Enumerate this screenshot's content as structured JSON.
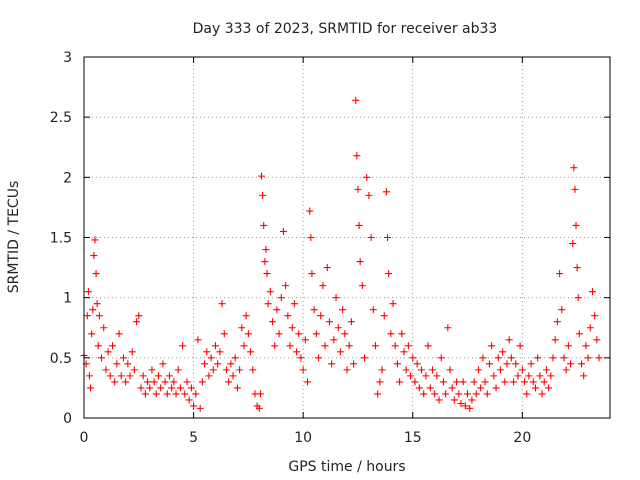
{
  "chart_data": {
    "type": "scatter",
    "title": "Day 333 of 2023, SRMTID for receiver ab33",
    "xlabel": "GPS time / hours",
    "ylabel": "SRMTID / TECUs",
    "xlim": [
      0,
      24
    ],
    "ylim": [
      0,
      3
    ],
    "xticks": [
      "0",
      "5",
      "10",
      "15",
      "20"
    ],
    "yticks": [
      "0",
      "0.5",
      "1",
      "1.5",
      "2",
      "2.5",
      "3"
    ],
    "grid": true,
    "marker": "+",
    "color": "#ff0000",
    "series": [
      {
        "name": "SRMTID",
        "points": [
          [
            0.0,
            0.52
          ],
          [
            0.1,
            0.45
          ],
          [
            0.15,
            0.85
          ],
          [
            0.2,
            1.05
          ],
          [
            0.25,
            0.35
          ],
          [
            0.3,
            0.25
          ],
          [
            0.35,
            0.7
          ],
          [
            0.4,
            0.9
          ],
          [
            0.45,
            1.35
          ],
          [
            0.5,
            1.48
          ],
          [
            0.55,
            1.2
          ],
          [
            0.6,
            0.95
          ],
          [
            0.65,
            0.6
          ],
          [
            0.7,
            0.85
          ],
          [
            0.8,
            0.5
          ],
          [
            0.9,
            0.75
          ],
          [
            1.0,
            0.4
          ],
          [
            1.1,
            0.55
          ],
          [
            1.2,
            0.35
          ],
          [
            1.3,
            0.6
          ],
          [
            1.4,
            0.3
          ],
          [
            1.5,
            0.45
          ],
          [
            1.6,
            0.7
          ],
          [
            1.7,
            0.35
          ],
          [
            1.8,
            0.5
          ],
          [
            1.9,
            0.3
          ],
          [
            2.0,
            0.45
          ],
          [
            2.1,
            0.35
          ],
          [
            2.2,
            0.55
          ],
          [
            2.3,
            0.4
          ],
          [
            2.4,
            0.8
          ],
          [
            2.5,
            0.85
          ],
          [
            2.6,
            0.25
          ],
          [
            2.7,
            0.35
          ],
          [
            2.8,
            0.2
          ],
          [
            2.9,
            0.3
          ],
          [
            3.0,
            0.25
          ],
          [
            3.1,
            0.4
          ],
          [
            3.2,
            0.3
          ],
          [
            3.3,
            0.2
          ],
          [
            3.4,
            0.35
          ],
          [
            3.5,
            0.25
          ],
          [
            3.6,
            0.45
          ],
          [
            3.7,
            0.3
          ],
          [
            3.8,
            0.2
          ],
          [
            3.9,
            0.35
          ],
          [
            4.0,
            0.25
          ],
          [
            4.1,
            0.3
          ],
          [
            4.2,
            0.2
          ],
          [
            4.3,
            0.4
          ],
          [
            4.4,
            0.25
          ],
          [
            4.5,
            0.6
          ],
          [
            4.6,
            0.2
          ],
          [
            4.7,
            0.3
          ],
          [
            4.8,
            0.15
          ],
          [
            4.9,
            0.25
          ],
          [
            5.0,
            0.1
          ],
          [
            5.1,
            0.2
          ],
          [
            5.2,
            0.65
          ],
          [
            5.3,
            0.08
          ],
          [
            5.4,
            0.3
          ],
          [
            5.5,
            0.45
          ],
          [
            5.6,
            0.55
          ],
          [
            5.7,
            0.35
          ],
          [
            5.8,
            0.5
          ],
          [
            5.9,
            0.4
          ],
          [
            6.0,
            0.6
          ],
          [
            6.1,
            0.45
          ],
          [
            6.2,
            0.55
          ],
          [
            6.3,
            0.95
          ],
          [
            6.4,
            0.7
          ],
          [
            6.5,
            0.4
          ],
          [
            6.6,
            0.3
          ],
          [
            6.7,
            0.45
          ],
          [
            6.8,
            0.35
          ],
          [
            6.9,
            0.5
          ],
          [
            7.0,
            0.25
          ],
          [
            7.1,
            0.4
          ],
          [
            7.2,
            0.75
          ],
          [
            7.3,
            0.6
          ],
          [
            7.4,
            0.85
          ],
          [
            7.5,
            0.7
          ],
          [
            7.6,
            0.55
          ],
          [
            7.7,
            0.4
          ],
          [
            7.8,
            0.2
          ],
          [
            7.9,
            0.1
          ],
          [
            8.0,
            0.08
          ],
          [
            8.05,
            0.2
          ],
          [
            8.1,
            2.01
          ],
          [
            8.15,
            1.85
          ],
          [
            8.2,
            1.6
          ],
          [
            8.25,
            1.3
          ],
          [
            8.3,
            1.4
          ],
          [
            8.35,
            1.2
          ],
          [
            8.4,
            0.95
          ],
          [
            8.5,
            1.05
          ],
          [
            8.6,
            0.8
          ],
          [
            8.7,
            0.6
          ],
          [
            8.8,
            0.9
          ],
          [
            8.9,
            0.7
          ],
          [
            9.0,
            1.0
          ],
          [
            9.1,
            1.55
          ],
          [
            9.2,
            1.1
          ],
          [
            9.3,
            0.85
          ],
          [
            9.4,
            0.6
          ],
          [
            9.5,
            0.75
          ],
          [
            9.6,
            0.95
          ],
          [
            9.7,
            0.55
          ],
          [
            9.8,
            0.7
          ],
          [
            9.9,
            0.5
          ],
          [
            10.0,
            0.4
          ],
          [
            10.1,
            0.65
          ],
          [
            10.2,
            0.3
          ],
          [
            10.3,
            1.72
          ],
          [
            10.35,
            1.5
          ],
          [
            10.4,
            1.2
          ],
          [
            10.5,
            0.9
          ],
          [
            10.6,
            0.7
          ],
          [
            10.7,
            0.5
          ],
          [
            10.8,
            0.85
          ],
          [
            10.9,
            1.1
          ],
          [
            11.0,
            0.6
          ],
          [
            11.1,
            1.25
          ],
          [
            11.2,
            0.8
          ],
          [
            11.3,
            0.45
          ],
          [
            11.4,
            0.65
          ],
          [
            11.5,
            1.0
          ],
          [
            11.6,
            0.75
          ],
          [
            11.7,
            0.55
          ],
          [
            11.8,
            0.9
          ],
          [
            11.9,
            0.7
          ],
          [
            12.0,
            0.4
          ],
          [
            12.1,
            0.6
          ],
          [
            12.2,
            0.8
          ],
          [
            12.3,
            0.45
          ],
          [
            12.4,
            2.64
          ],
          [
            12.45,
            2.18
          ],
          [
            12.5,
            1.9
          ],
          [
            12.55,
            1.6
          ],
          [
            12.6,
            1.3
          ],
          [
            12.7,
            1.1
          ],
          [
            12.8,
            0.5
          ],
          [
            12.9,
            2.0
          ],
          [
            13.0,
            1.85
          ],
          [
            13.1,
            1.5
          ],
          [
            13.2,
            0.9
          ],
          [
            13.3,
            0.6
          ],
          [
            13.4,
            0.2
          ],
          [
            13.5,
            0.3
          ],
          [
            13.6,
            0.4
          ],
          [
            13.7,
            0.85
          ],
          [
            13.8,
            1.88
          ],
          [
            13.85,
            1.5
          ],
          [
            13.9,
            1.2
          ],
          [
            14.0,
            0.7
          ],
          [
            14.1,
            0.95
          ],
          [
            14.2,
            0.6
          ],
          [
            14.3,
            0.45
          ],
          [
            14.4,
            0.3
          ],
          [
            14.5,
            0.7
          ],
          [
            14.6,
            0.55
          ],
          [
            14.7,
            0.4
          ],
          [
            14.8,
            0.6
          ],
          [
            14.9,
            0.35
          ],
          [
            15.0,
            0.5
          ],
          [
            15.1,
            0.3
          ],
          [
            15.2,
            0.45
          ],
          [
            15.3,
            0.25
          ],
          [
            15.4,
            0.4
          ],
          [
            15.5,
            0.2
          ],
          [
            15.6,
            0.35
          ],
          [
            15.7,
            0.6
          ],
          [
            15.8,
            0.25
          ],
          [
            15.9,
            0.4
          ],
          [
            16.0,
            0.2
          ],
          [
            16.1,
            0.35
          ],
          [
            16.2,
            0.15
          ],
          [
            16.3,
            0.5
          ],
          [
            16.4,
            0.3
          ],
          [
            16.5,
            0.2
          ],
          [
            16.6,
            0.75
          ],
          [
            16.7,
            0.4
          ],
          [
            16.8,
            0.25
          ],
          [
            16.9,
            0.15
          ],
          [
            17.0,
            0.3
          ],
          [
            17.1,
            0.2
          ],
          [
            17.2,
            0.12
          ],
          [
            17.3,
            0.3
          ],
          [
            17.4,
            0.1
          ],
          [
            17.5,
            0.2
          ],
          [
            17.6,
            0.08
          ],
          [
            17.7,
            0.15
          ],
          [
            17.8,
            0.3
          ],
          [
            17.9,
            0.2
          ],
          [
            18.0,
            0.4
          ],
          [
            18.1,
            0.25
          ],
          [
            18.2,
            0.5
          ],
          [
            18.3,
            0.3
          ],
          [
            18.4,
            0.2
          ],
          [
            18.5,
            0.45
          ],
          [
            18.6,
            0.6
          ],
          [
            18.7,
            0.35
          ],
          [
            18.8,
            0.25
          ],
          [
            18.9,
            0.5
          ],
          [
            19.0,
            0.4
          ],
          [
            19.1,
            0.55
          ],
          [
            19.2,
            0.3
          ],
          [
            19.3,
            0.45
          ],
          [
            19.4,
            0.65
          ],
          [
            19.5,
            0.5
          ],
          [
            19.6,
            0.3
          ],
          [
            19.7,
            0.45
          ],
          [
            19.8,
            0.35
          ],
          [
            19.9,
            0.6
          ],
          [
            20.0,
            0.4
          ],
          [
            20.1,
            0.3
          ],
          [
            20.2,
            0.2
          ],
          [
            20.3,
            0.35
          ],
          [
            20.4,
            0.45
          ],
          [
            20.5,
            0.3
          ],
          [
            20.6,
            0.25
          ],
          [
            20.7,
            0.5
          ],
          [
            20.8,
            0.35
          ],
          [
            20.9,
            0.2
          ],
          [
            21.0,
            0.3
          ],
          [
            21.1,
            0.4
          ],
          [
            21.2,
            0.25
          ],
          [
            21.3,
            0.35
          ],
          [
            21.4,
            0.5
          ],
          [
            21.5,
            0.65
          ],
          [
            21.6,
            0.8
          ],
          [
            21.7,
            1.2
          ],
          [
            21.8,
            0.9
          ],
          [
            21.9,
            0.5
          ],
          [
            22.0,
            0.4
          ],
          [
            22.1,
            0.6
          ],
          [
            22.2,
            0.45
          ],
          [
            22.3,
            1.45
          ],
          [
            22.35,
            2.08
          ],
          [
            22.4,
            1.9
          ],
          [
            22.45,
            1.6
          ],
          [
            22.5,
            1.25
          ],
          [
            22.55,
            1.0
          ],
          [
            22.6,
            0.7
          ],
          [
            22.7,
            0.45
          ],
          [
            22.8,
            0.35
          ],
          [
            22.9,
            0.6
          ],
          [
            23.0,
            0.5
          ],
          [
            23.1,
            0.75
          ],
          [
            23.2,
            1.05
          ],
          [
            23.3,
            0.85
          ],
          [
            23.4,
            0.65
          ],
          [
            23.5,
            0.5
          ]
        ]
      }
    ]
  }
}
